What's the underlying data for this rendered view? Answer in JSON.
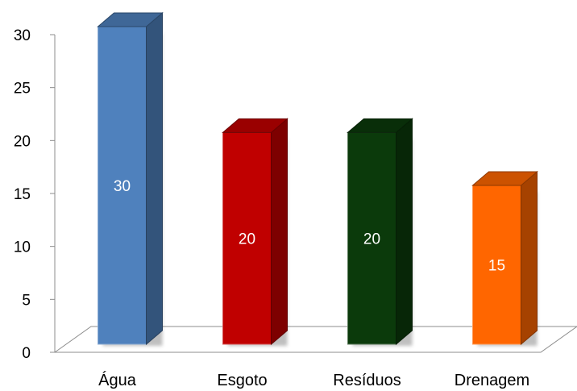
{
  "chart_data": {
    "type": "bar",
    "style": "3d-column",
    "categories": [
      "Água",
      "Esgoto",
      "Resíduos",
      "Drenagem"
    ],
    "values": [
      30,
      20,
      20,
      15
    ],
    "data_labels": [
      "30",
      "20",
      "20",
      "15"
    ],
    "colors": [
      "#4f81bd",
      "#c00000",
      "#0b3a0b",
      "#ff6600"
    ],
    "ylim": [
      0,
      30
    ],
    "yticks": [
      0,
      5,
      10,
      15,
      20,
      25,
      30
    ],
    "ytick_labels": [
      "0",
      "5",
      "10",
      "15",
      "20",
      "25",
      "30"
    ],
    "grid": false,
    "legend": "none",
    "title": "",
    "xlabel": "",
    "ylabel": ""
  }
}
